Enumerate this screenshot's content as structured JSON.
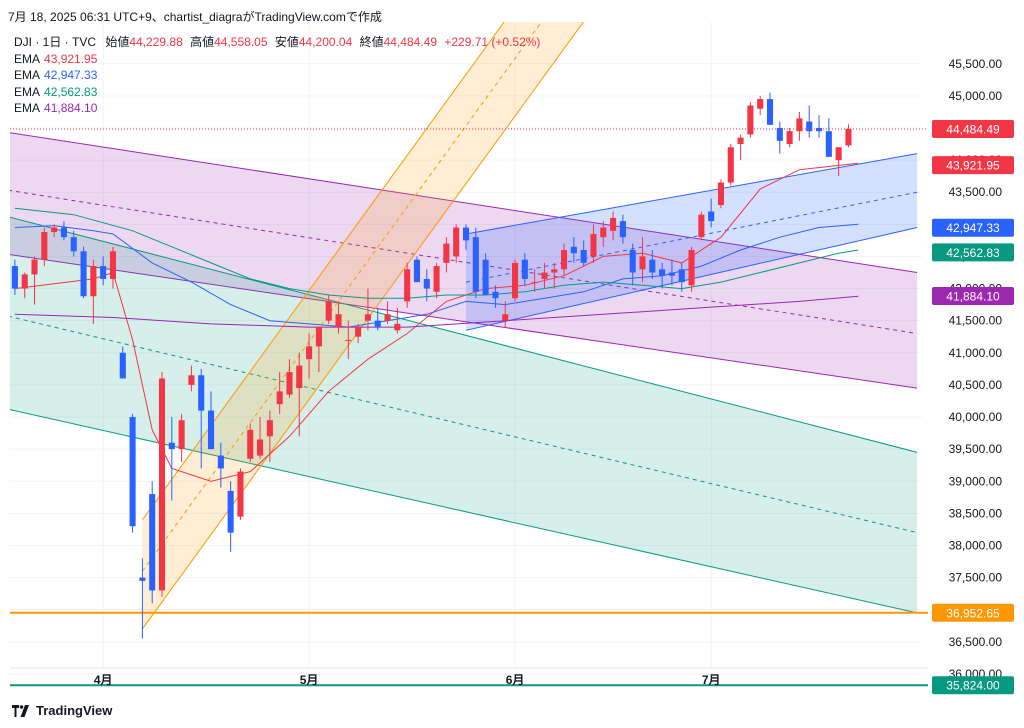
{
  "header": {
    "caption": "7月 18, 2025 06:31 UTC+9、chartist_diagraがTradingView.comで作成"
  },
  "symbol": {
    "name": "DJI · 1日 · TVC",
    "open_label": "始値",
    "open": "44,229.88",
    "high_label": "高値",
    "high": "44,558.05",
    "low_label": "安値",
    "low": "44,200.04",
    "close_label": "終値",
    "close": "44,484.49",
    "change": "+229.71 (+0.52%)"
  },
  "ema": [
    {
      "label": "EMA",
      "value": "43,921.95",
      "color": "#f23645"
    },
    {
      "label": "EMA",
      "value": "42,947.33",
      "color": "#2962ff"
    },
    {
      "label": "EMA",
      "value": "42,562.83",
      "color": "#089981"
    },
    {
      "label": "EMA",
      "value": "41,884.10",
      "color": "#9c27b0"
    }
  ],
  "footer": {
    "brand": "TradingView"
  },
  "chart_data": {
    "type": "candlestick",
    "colors": {
      "up": "#f23645",
      "down": "#2962ff"
    },
    "x_tick_labels": [
      {
        "label": "4月",
        "bar": 9
      },
      {
        "label": "5月",
        "bar": 30
      },
      {
        "label": "6月",
        "bar": 51
      },
      {
        "label": "7月",
        "bar": 71
      }
    ],
    "y_ticks": [
      36000,
      36500,
      37000,
      37500,
      38000,
      38500,
      39000,
      39500,
      40000,
      40500,
      41000,
      41500,
      42000,
      42500,
      43000,
      43500,
      44000,
      44500,
      45000,
      45500
    ],
    "ylim": [
      35750,
      46150
    ],
    "bars_visible": 93,
    "candles": [
      [
        42350,
        42450,
        41900,
        42000
      ],
      [
        42000,
        42250,
        41850,
        42220
      ],
      [
        42220,
        42500,
        41750,
        42450
      ],
      [
        42450,
        42950,
        42350,
        42880
      ],
      [
        42880,
        43000,
        42800,
        42950
      ],
      [
        42950,
        43050,
        42750,
        42800
      ],
      [
        42800,
        42900,
        42500,
        42580
      ],
      [
        42580,
        42650,
        41850,
        41880
      ],
      [
        41880,
        42450,
        41450,
        42350
      ],
      [
        42350,
        42500,
        42050,
        42150
      ],
      [
        42150,
        42650,
        42000,
        42580
      ],
      [
        41000,
        41100,
        40600,
        40600
      ],
      [
        40000,
        40050,
        38200,
        38300
      ],
      [
        37500,
        37800,
        36550,
        37450
      ],
      [
        38800,
        39000,
        37100,
        37300
      ],
      [
        37300,
        40700,
        37200,
        40600
      ],
      [
        39600,
        40000,
        38700,
        39500
      ],
      [
        39500,
        40050,
        39300,
        39950
      ],
      [
        40500,
        40800,
        40400,
        40650
      ],
      [
        40650,
        40750,
        39200,
        40100
      ],
      [
        40100,
        40400,
        39500,
        39500
      ],
      [
        39400,
        39600,
        38900,
        39200
      ],
      [
        38850,
        39000,
        37900,
        38200
      ],
      [
        38450,
        39200,
        38400,
        39150
      ],
      [
        39350,
        39900,
        39300,
        39800
      ],
      [
        39400,
        40000,
        39350,
        39650
      ],
      [
        39700,
        40100,
        39300,
        39950
      ],
      [
        40200,
        40700,
        40050,
        40400
      ],
      [
        40350,
        40900,
        40300,
        40700
      ],
      [
        40450,
        41000,
        39700,
        40800
      ],
      [
        40900,
        41300,
        40600,
        41100
      ],
      [
        41100,
        41400,
        40700,
        41400
      ],
      [
        41500,
        41900,
        41450,
        41800
      ],
      [
        41400,
        41800,
        41300,
        41600
      ],
      [
        41200,
        41500,
        40900,
        41200
      ],
      [
        41250,
        41450,
        41150,
        41400
      ],
      [
        41500,
        42000,
        41350,
        41600
      ],
      [
        41500,
        41700,
        41350,
        41400
      ],
      [
        41500,
        41800,
        41450,
        41600
      ],
      [
        41350,
        41700,
        41300,
        41450
      ],
      [
        41800,
        42400,
        41700,
        42300
      ],
      [
        42450,
        42500,
        42150,
        42100
      ],
      [
        42150,
        42300,
        41800,
        42000
      ],
      [
        41950,
        42400,
        41850,
        42350
      ],
      [
        42400,
        42800,
        42250,
        42700
      ],
      [
        42500,
        43000,
        42400,
        42950
      ],
      [
        42950,
        43000,
        42600,
        42750
      ],
      [
        42800,
        42950,
        41850,
        41950
      ],
      [
        42450,
        42550,
        41900,
        41900
      ],
      [
        41950,
        42050,
        41700,
        41850
      ],
      [
        41500,
        41800,
        41400,
        41600
      ],
      [
        41850,
        42450,
        41800,
        42400
      ],
      [
        42450,
        42550,
        42050,
        42150
      ],
      [
        42100,
        42300,
        41950,
        42100
      ],
      [
        42150,
        42400,
        42000,
        42250
      ],
      [
        42250,
        42400,
        42000,
        42300
      ],
      [
        42300,
        42700,
        42200,
        42600
      ],
      [
        42650,
        42800,
        42400,
        42550
      ],
      [
        42600,
        42750,
        42350,
        42400
      ],
      [
        42500,
        43000,
        42400,
        42850
      ],
      [
        42800,
        43050,
        42650,
        42950
      ],
      [
        42900,
        43200,
        42750,
        43100
      ],
      [
        43050,
        43150,
        42700,
        42800
      ],
      [
        42600,
        42700,
        42050,
        42250
      ],
      [
        42300,
        42800,
        42100,
        42500
      ],
      [
        42450,
        42600,
        42150,
        42250
      ],
      [
        42300,
        42400,
        42000,
        42200
      ],
      [
        42250,
        42450,
        42050,
        42200
      ],
      [
        42300,
        42400,
        41950,
        42100
      ],
      [
        42050,
        42650,
        41950,
        42600
      ],
      [
        42800,
        43200,
        42750,
        43150
      ],
      [
        43200,
        43400,
        42950,
        43050
      ],
      [
        43300,
        43700,
        43250,
        43650
      ],
      [
        43650,
        44250,
        43600,
        44200
      ],
      [
        44250,
        44400,
        44000,
        44350
      ],
      [
        44400,
        44900,
        44350,
        44850
      ],
      [
        44800,
        45000,
        44700,
        44950
      ],
      [
        44950,
        45050,
        44550,
        44550
      ],
      [
        44500,
        44600,
        44100,
        44300
      ],
      [
        44250,
        44500,
        44200,
        44450
      ],
      [
        44450,
        44750,
        44300,
        44650
      ],
      [
        44600,
        44850,
        44350,
        44450
      ],
      [
        44500,
        44700,
        44350,
        44450
      ],
      [
        44450,
        44650,
        44050,
        44050
      ],
      [
        44000,
        44200,
        43750,
        44200
      ],
      [
        44230,
        44558,
        44200,
        44484
      ]
    ],
    "ema_series": [
      {
        "color": "#f23645",
        "points": [
          [
            0,
            42000
          ],
          [
            8,
            42150
          ],
          [
            10,
            42250
          ],
          [
            12,
            41200
          ],
          [
            14,
            39800
          ],
          [
            16,
            39200
          ],
          [
            20,
            39000
          ],
          [
            24,
            39150
          ],
          [
            28,
            39700
          ],
          [
            32,
            40400
          ],
          [
            36,
            40900
          ],
          [
            40,
            41300
          ],
          [
            44,
            41800
          ],
          [
            48,
            42000
          ],
          [
            52,
            42050
          ],
          [
            56,
            42200
          ],
          [
            60,
            42500
          ],
          [
            64,
            42550
          ],
          [
            68,
            42400
          ],
          [
            72,
            42800
          ],
          [
            76,
            43550
          ],
          [
            80,
            43850
          ],
          [
            86,
            43950
          ]
        ]
      },
      {
        "color": "#2962ff",
        "points": [
          [
            0,
            42950
          ],
          [
            4,
            42980
          ],
          [
            8,
            42900
          ],
          [
            10,
            42850
          ],
          [
            14,
            42400
          ],
          [
            18,
            42100
          ],
          [
            22,
            41750
          ],
          [
            26,
            41500
          ],
          [
            30,
            41450
          ],
          [
            34,
            41400
          ],
          [
            38,
            41500
          ],
          [
            42,
            41600
          ],
          [
            46,
            41800
          ],
          [
            50,
            41750
          ],
          [
            54,
            41850
          ],
          [
            58,
            41950
          ],
          [
            62,
            42150
          ],
          [
            66,
            42200
          ],
          [
            70,
            42350
          ],
          [
            74,
            42600
          ],
          [
            78,
            42800
          ],
          [
            82,
            42950
          ],
          [
            86,
            43000
          ]
        ]
      },
      {
        "color": "#089981",
        "points": [
          [
            0,
            43250
          ],
          [
            6,
            43150
          ],
          [
            12,
            42900
          ],
          [
            16,
            42650
          ],
          [
            20,
            42400
          ],
          [
            24,
            42150
          ],
          [
            28,
            42000
          ],
          [
            32,
            41900
          ],
          [
            36,
            41850
          ],
          [
            40,
            41850
          ],
          [
            44,
            41900
          ],
          [
            48,
            41900
          ],
          [
            52,
            41950
          ],
          [
            56,
            42050
          ],
          [
            60,
            42100
          ],
          [
            64,
            42050
          ],
          [
            68,
            42000
          ],
          [
            72,
            42100
          ],
          [
            76,
            42250
          ],
          [
            80,
            42400
          ],
          [
            84,
            42550
          ],
          [
            86,
            42600
          ]
        ]
      },
      {
        "color": "#9c27b0",
        "points": [
          [
            0,
            41600
          ],
          [
            10,
            41550
          ],
          [
            20,
            41450
          ],
          [
            30,
            41400
          ],
          [
            40,
            41400
          ],
          [
            50,
            41500
          ],
          [
            60,
            41600
          ],
          [
            70,
            41700
          ],
          [
            80,
            41800
          ],
          [
            86,
            41880
          ]
        ]
      }
    ],
    "channels": [
      {
        "name_hidden": "purple",
        "fill": "rgba(156,39,176,0.18)",
        "stroke": "#9c27b0",
        "x0": -1.5,
        "x1": 92,
        "upper": [
          44450,
          42250
        ],
        "mid": [
          43550,
          41300
        ],
        "lower": [
          42550,
          40450
        ]
      },
      {
        "name_hidden": "teal",
        "fill": "rgba(8,153,129,0.16)",
        "stroke": "#089981",
        "x0": -1.5,
        "x1": 92,
        "upper": [
          43150,
          39450
        ],
        "mid": [
          41600,
          38200
        ],
        "lower": [
          40150,
          36950
        ]
      },
      {
        "name_hidden": "orange",
        "fill": "rgba(255,152,0,0.17)",
        "stroke": "#ff9800",
        "x0": 13,
        "x1": 92,
        "upper": [
          38400,
          55000
        ],
        "mid": [
          37600,
          54200
        ],
        "lower": [
          36700,
          53300
        ]
      },
      {
        "name_hidden": "blue",
        "fill": "rgba(41,98,255,0.20)",
        "stroke": "#2962ff",
        "x0": 46,
        "x1": 92,
        "upper": [
          42850,
          44100
        ],
        "mid": [
          42100,
          43500
        ],
        "lower": [
          41350,
          42950
        ]
      }
    ],
    "horizontal_lines": [
      {
        "value": 36952.65,
        "color": "#ff9800",
        "label": "36,952.65"
      },
      {
        "value": 35824.0,
        "color": "#089981",
        "label": "35,824.00"
      }
    ],
    "price_labels": [
      {
        "value": 44484.49,
        "text": "44,484.49",
        "color": "#f23645"
      },
      {
        "value": 43921.95,
        "text": "43,921.95",
        "color": "#f23645"
      },
      {
        "value": 42947.33,
        "text": "42,947.33",
        "color": "#2962ff"
      },
      {
        "value": 42562.83,
        "text": "42,562.83",
        "color": "#089981"
      },
      {
        "value": 41884.1,
        "text": "41,884.10",
        "color": "#9c27b0"
      },
      {
        "value": 36952.65,
        "text": "36,952.65",
        "color": "#ff9800"
      },
      {
        "value": 35824.0,
        "text": "35,824.00",
        "color": "#089981"
      }
    ],
    "last_price": 44484.49,
    "grid": true
  }
}
